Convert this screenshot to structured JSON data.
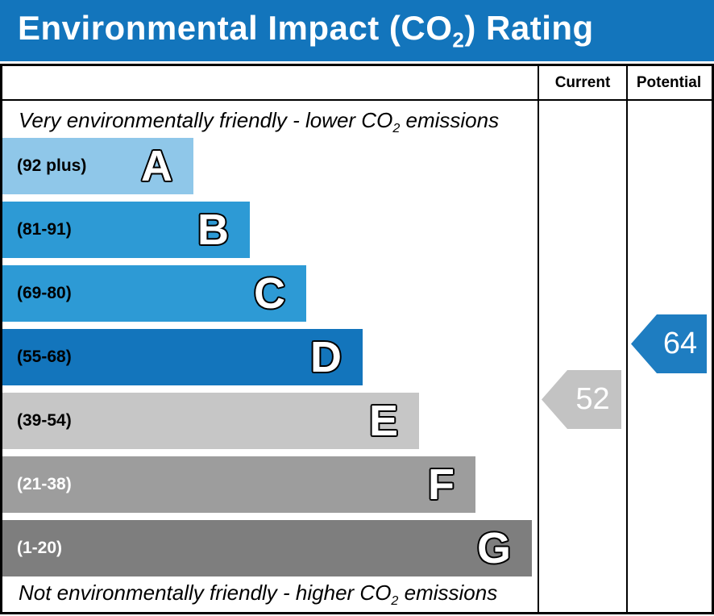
{
  "title_bar": {
    "prefix": "Environmental Impact (CO",
    "sub": "2",
    "suffix": ") Rating",
    "bg_color": "#1375BC",
    "text_color": "#FFFFFF"
  },
  "table_header": {
    "current": "Current",
    "potential": "Potential"
  },
  "notes": {
    "top": {
      "prefix": "Very environmentally friendly - lower CO",
      "sub": "2",
      "suffix": " emissions"
    },
    "bottom": {
      "prefix": "Not environmentally friendly - higher CO",
      "sub": "2",
      "suffix": " emissions"
    }
  },
  "chart_data": {
    "type": "bar",
    "title": "Environmental Impact (CO2) Rating",
    "bands": [
      {
        "letter": "A",
        "range_label": "(92 plus)",
        "min": 92,
        "max": 100,
        "color": "#8FC7E9",
        "label_color": "#000000"
      },
      {
        "letter": "B",
        "range_label": "(81-91)",
        "min": 81,
        "max": 91,
        "color": "#2D9AD5",
        "label_color": "#000000"
      },
      {
        "letter": "C",
        "range_label": "(69-80)",
        "min": 69,
        "max": 80,
        "color": "#2D9AD5",
        "label_color": "#000000"
      },
      {
        "letter": "D",
        "range_label": "(55-68)",
        "min": 55,
        "max": 68,
        "color": "#1375BC",
        "label_color": "#000000"
      },
      {
        "letter": "E",
        "range_label": "(39-54)",
        "min": 39,
        "max": 54,
        "color": "#C6C6C6",
        "label_color": "#000000"
      },
      {
        "letter": "F",
        "range_label": "(21-38)",
        "min": 21,
        "max": 38,
        "color": "#9D9D9D",
        "label_color": "#FFFFFF"
      },
      {
        "letter": "G",
        "range_label": "(1-20)",
        "min": 1,
        "max": 20,
        "color": "#7E7E7E",
        "label_color": "#FFFFFF"
      }
    ],
    "current": {
      "value": 52,
      "band": "E",
      "color": "#C3C3C3"
    },
    "potential": {
      "value": 64,
      "band": "D",
      "color": "#1E7DC1"
    }
  }
}
